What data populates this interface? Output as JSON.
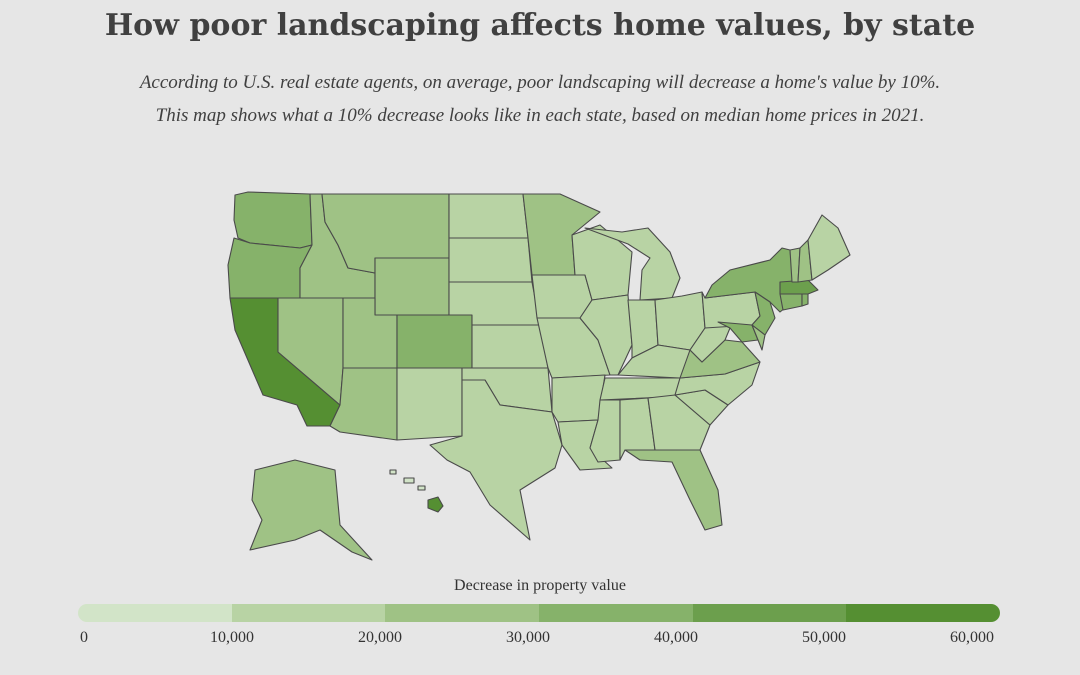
{
  "title": "How poor landscaping affects home values, by state",
  "subtitle_line1": "According to U.S. real estate agents, on average, poor landscaping will decrease a home's value by 10%.",
  "subtitle_line2": "This map shows what a 10% decrease looks like in each state, based on median home prices in 2021.",
  "legend": {
    "title": "Decrease in property value",
    "colors": [
      "#d2e4c8",
      "#b8d3a4",
      "#9fc285",
      "#86b26a",
      "#6c9f4d",
      "#558f32"
    ],
    "ticks": [
      "0",
      "10,000",
      "20,000",
      "30,000",
      "40,000",
      "50,000",
      "60,000"
    ]
  },
  "map_data": {
    "metric": "10% decrease in median home value (2021)",
    "states": [
      {
        "id": "WA",
        "bucket": 3
      },
      {
        "id": "OR",
        "bucket": 3
      },
      {
        "id": "CA",
        "bucket": 5
      },
      {
        "id": "NV",
        "bucket": 2
      },
      {
        "id": "ID",
        "bucket": 2
      },
      {
        "id": "MT",
        "bucket": 2
      },
      {
        "id": "WY",
        "bucket": 2
      },
      {
        "id": "UT",
        "bucket": 2
      },
      {
        "id": "AZ",
        "bucket": 2
      },
      {
        "id": "CO",
        "bucket": 3
      },
      {
        "id": "NM",
        "bucket": 1
      },
      {
        "id": "ND",
        "bucket": 1
      },
      {
        "id": "SD",
        "bucket": 1
      },
      {
        "id": "NE",
        "bucket": 1
      },
      {
        "id": "KS",
        "bucket": 1
      },
      {
        "id": "OK",
        "bucket": 1
      },
      {
        "id": "TX",
        "bucket": 1
      },
      {
        "id": "MN",
        "bucket": 2
      },
      {
        "id": "IA",
        "bucket": 1
      },
      {
        "id": "MO",
        "bucket": 1
      },
      {
        "id": "AR",
        "bucket": 1
      },
      {
        "id": "LA",
        "bucket": 1
      },
      {
        "id": "WI",
        "bucket": 1
      },
      {
        "id": "IL",
        "bucket": 1
      },
      {
        "id": "MI",
        "bucket": 1
      },
      {
        "id": "IN",
        "bucket": 1
      },
      {
        "id": "OH",
        "bucket": 1
      },
      {
        "id": "KY",
        "bucket": 1
      },
      {
        "id": "TN",
        "bucket": 1
      },
      {
        "id": "MS",
        "bucket": 1
      },
      {
        "id": "AL",
        "bucket": 1
      },
      {
        "id": "GA",
        "bucket": 1
      },
      {
        "id": "FL",
        "bucket": 2
      },
      {
        "id": "SC",
        "bucket": 1
      },
      {
        "id": "NC",
        "bucket": 1
      },
      {
        "id": "VA",
        "bucket": 2
      },
      {
        "id": "WV",
        "bucket": 1
      },
      {
        "id": "PA",
        "bucket": 1
      },
      {
        "id": "NY",
        "bucket": 3
      },
      {
        "id": "NJ",
        "bucket": 3
      },
      {
        "id": "MD",
        "bucket": 3
      },
      {
        "id": "DE",
        "bucket": 2
      },
      {
        "id": "CT",
        "bucket": 3
      },
      {
        "id": "RI",
        "bucket": 3
      },
      {
        "id": "MA",
        "bucket": 4
      },
      {
        "id": "VT",
        "bucket": 2
      },
      {
        "id": "NH",
        "bucket": 2
      },
      {
        "id": "ME",
        "bucket": 1
      },
      {
        "id": "AK",
        "bucket": 2
      },
      {
        "id": "HI",
        "bucket": 5
      }
    ]
  }
}
